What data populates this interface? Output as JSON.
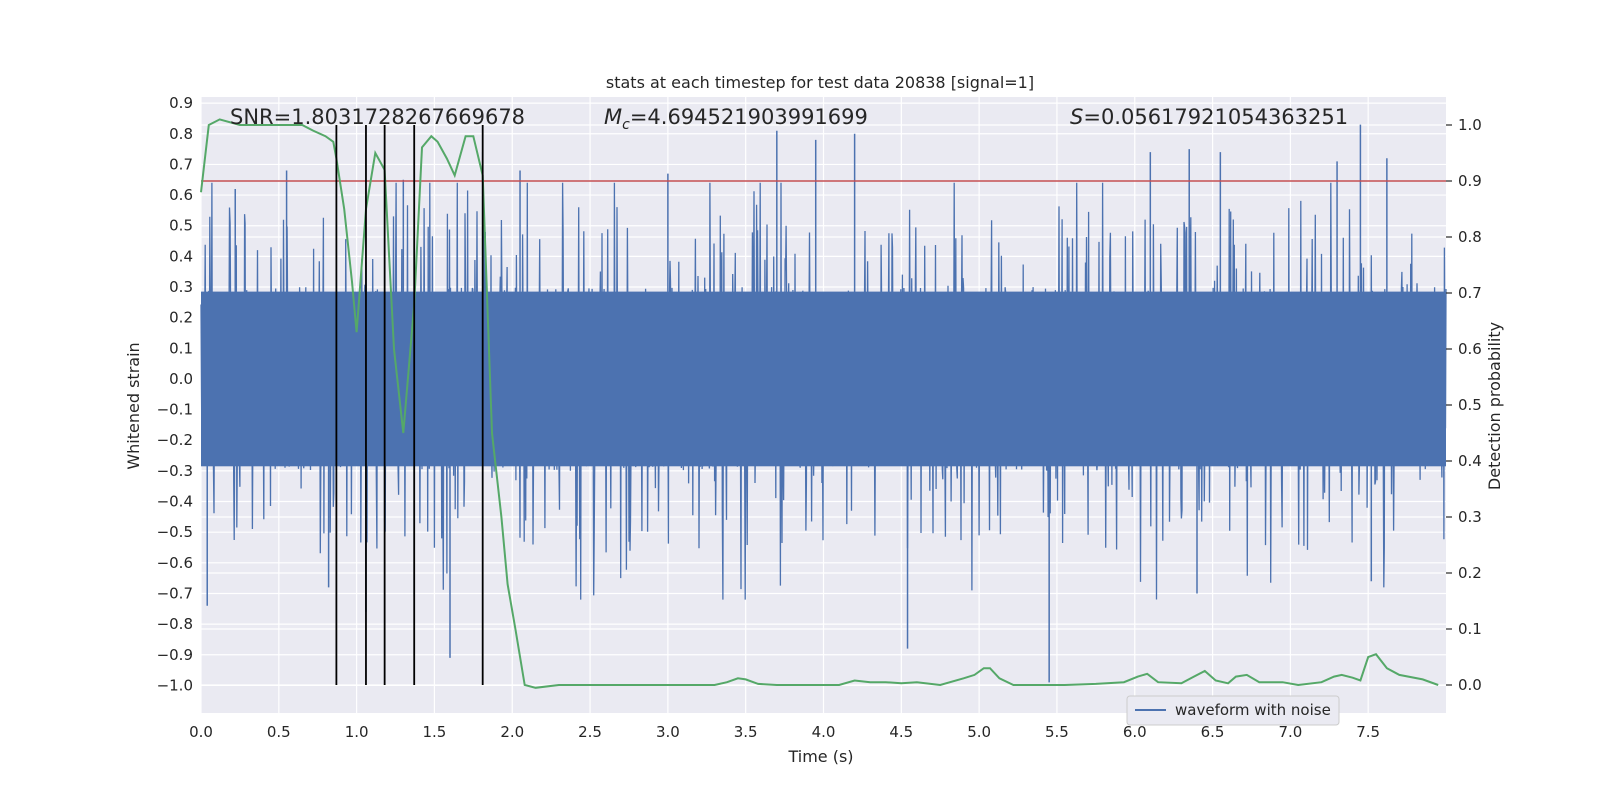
{
  "chart_data": {
    "type": "line",
    "title": "stats at each timestep for test data 20838 [signal=1]",
    "xlabel": "Time (s)",
    "ylabel_left": "Whitened strain",
    "ylabel_right": "Detection probability",
    "xlim": [
      0.0,
      8.0
    ],
    "ylim_left": [
      -1.09,
      0.92
    ],
    "ylim_right": [
      -0.05,
      1.05
    ],
    "x_ticks": [
      "0.0",
      "0.5",
      "1.0",
      "1.5",
      "2.0",
      "2.5",
      "3.0",
      "3.5",
      "4.0",
      "4.5",
      "5.0",
      "5.5",
      "6.0",
      "6.5",
      "7.0",
      "7.5"
    ],
    "y_left_ticks": [
      "0.9",
      "0.8",
      "0.7",
      "0.6",
      "0.5",
      "0.4",
      "0.3",
      "0.2",
      "0.1",
      "0.0",
      "-0.1",
      "-0.2",
      "-0.3",
      "-0.4",
      "-0.5",
      "-0.6",
      "-0.7",
      "-0.8",
      "-0.9",
      "-1.0"
    ],
    "y_right_ticks": [
      "1.0",
      "0.9",
      "0.8",
      "0.7",
      "0.6",
      "0.5",
      "0.4",
      "0.3",
      "0.2",
      "0.1",
      "0.0"
    ],
    "annotations": {
      "snr": "SNR=1.8031728267669678",
      "mc_symbol": "M",
      "mc_sub": "c",
      "mc_value": "=4.694521903991699",
      "s_symbol": "S",
      "s_value": "=0.05617921054363251"
    },
    "threshold": 0.9,
    "event_lines_x": [
      0.87,
      1.06,
      1.18,
      1.37,
      1.81
    ],
    "series": [
      {
        "name": "waveform with noise",
        "axis": "left",
        "color": "#4c72b0",
        "kind": "noise",
        "core_amplitude": 0.3,
        "peaks": [
          {
            "x": 0.04,
            "v": -0.74
          },
          {
            "x": 0.22,
            "v": 0.62
          },
          {
            "x": 0.55,
            "v": 0.68
          },
          {
            "x": 0.82,
            "v": -0.68
          },
          {
            "x": 1.06,
            "v": -0.76
          },
          {
            "x": 1.3,
            "v": 0.65
          },
          {
            "x": 1.37,
            "v": -0.71
          },
          {
            "x": 1.6,
            "v": -0.91
          },
          {
            "x": 1.81,
            "v": 0.74
          },
          {
            "x": 2.05,
            "v": 0.68
          },
          {
            "x": 3.0,
            "v": 0.67
          },
          {
            "x": 3.7,
            "v": 0.81
          },
          {
            "x": 3.95,
            "v": 0.78
          },
          {
            "x": 4.2,
            "v": 0.8
          },
          {
            "x": 4.54,
            "v": -0.88
          },
          {
            "x": 5.45,
            "v": -0.99
          },
          {
            "x": 6.1,
            "v": 0.74
          },
          {
            "x": 6.35,
            "v": 0.75
          },
          {
            "x": 6.4,
            "v": -0.7
          },
          {
            "x": 6.55,
            "v": 0.74
          },
          {
            "x": 7.3,
            "v": 0.71
          },
          {
            "x": 7.45,
            "v": 0.83
          },
          {
            "x": 7.52,
            "v": -0.66
          },
          {
            "x": 7.62,
            "v": 0.72
          }
        ]
      },
      {
        "name": "detection probability",
        "axis": "right",
        "color": "#55a868",
        "x": [
          0.0,
          0.05,
          0.12,
          0.25,
          0.5,
          0.65,
          0.72,
          0.8,
          0.85,
          0.87,
          0.92,
          0.97,
          1.0,
          1.06,
          1.12,
          1.18,
          1.24,
          1.3,
          1.37,
          1.42,
          1.48,
          1.52,
          1.58,
          1.63,
          1.7,
          1.75,
          1.81,
          1.87,
          1.93,
          1.97,
          2.02,
          2.08,
          2.15,
          2.3,
          2.5,
          2.7,
          3.0,
          3.3,
          3.38,
          3.45,
          3.5,
          3.58,
          3.7,
          3.9,
          4.1,
          4.2,
          4.3,
          4.4,
          4.5,
          4.6,
          4.75,
          4.9,
          4.97,
          5.03,
          5.07,
          5.13,
          5.22,
          5.35,
          5.55,
          5.75,
          5.93,
          6.02,
          6.08,
          6.15,
          6.3,
          6.38,
          6.45,
          6.52,
          6.6,
          6.65,
          6.72,
          6.8,
          6.95,
          7.05,
          7.2,
          7.28,
          7.33,
          7.4,
          7.45,
          7.5,
          7.55,
          7.62,
          7.7,
          7.85,
          7.95
        ],
        "y": [
          0.88,
          1.0,
          1.01,
          1.0,
          1.0,
          1.0,
          0.99,
          0.98,
          0.97,
          0.94,
          0.85,
          0.72,
          0.63,
          0.85,
          0.95,
          0.92,
          0.6,
          0.45,
          0.68,
          0.96,
          0.98,
          0.97,
          0.94,
          0.91,
          0.98,
          0.98,
          0.91,
          0.45,
          0.3,
          0.18,
          0.1,
          0.0,
          -0.005,
          0.0,
          0.0,
          0.0,
          0.0,
          0.0,
          0.005,
          0.012,
          0.01,
          0.002,
          0.0,
          0.0,
          0.0,
          0.008,
          0.005,
          0.005,
          0.003,
          0.005,
          0.0,
          0.012,
          0.018,
          0.03,
          0.03,
          0.012,
          0.0,
          0.0,
          0.0,
          0.002,
          0.005,
          0.015,
          0.02,
          0.005,
          0.003,
          0.015,
          0.025,
          0.008,
          0.003,
          0.015,
          0.018,
          0.005,
          0.005,
          0.0,
          0.005,
          0.015,
          0.018,
          0.013,
          0.008,
          0.05,
          0.055,
          0.03,
          0.018,
          0.01,
          0.0
        ]
      }
    ],
    "legend": {
      "label": "waveform with noise",
      "position": "lower-right"
    }
  }
}
